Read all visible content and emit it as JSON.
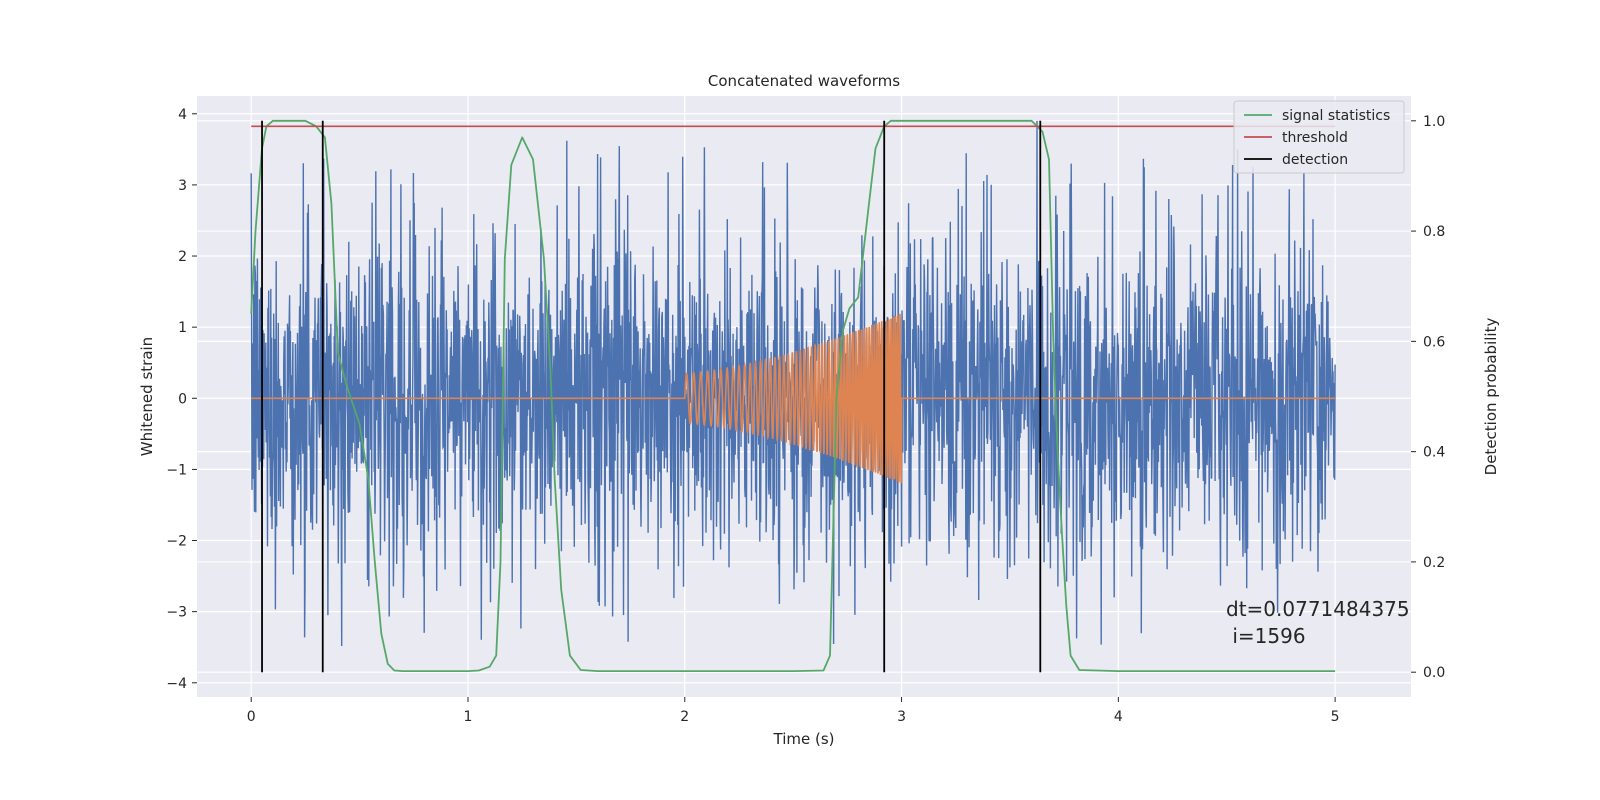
{
  "chart_data": {
    "type": "line",
    "title": "Concatenated waveforms",
    "xlabel": "Time (s)",
    "ylabel_left": "Whitened strain",
    "ylabel_right": "Detection probability",
    "xlim": [
      -0.25,
      5.35
    ],
    "ylim_left": [
      -4.2,
      4.25
    ],
    "ylim_right": [
      -0.045,
      1.045
    ],
    "x_ticks": [
      0,
      1,
      2,
      3,
      4,
      5
    ],
    "x_tick_labels": [
      "0",
      "1",
      "2",
      "3",
      "4",
      "5"
    ],
    "y_left_ticks": [
      4,
      3,
      2,
      1,
      0,
      -1,
      -2,
      -3,
      -4
    ],
    "y_left_tick_labels": [
      "4",
      "3",
      "2",
      "1",
      "0",
      "−1",
      "−2",
      "−3",
      "−4"
    ],
    "y_right_ticks": [
      1.0,
      0.8,
      0.6,
      0.4,
      0.2,
      0.0
    ],
    "y_right_tick_labels": [
      "1.0",
      "0.8",
      "0.6",
      "0.4",
      "0.2",
      "0.0"
    ],
    "grid": true,
    "legend_position": "top-right",
    "series": [
      {
        "name": "whitened strain (noise)",
        "axis": "left",
        "color": "#4c72b0",
        "x_range": [
          0,
          5
        ],
        "typical_amplitude": 1.2,
        "peak_range": [
          -3.8,
          3.9
        ]
      },
      {
        "name": "injected chirp",
        "axis": "left",
        "color": "#dd8452",
        "x_range": [
          0,
          5
        ],
        "chirp_x_range": [
          2.0,
          3.0
        ],
        "amplitude_start": 0.35,
        "amplitude_end": 1.2
      },
      {
        "name": "signal statistics",
        "axis": "right",
        "color": "#55a868",
        "x": [
          0.0,
          0.02,
          0.05,
          0.07,
          0.1,
          0.15,
          0.25,
          0.3,
          0.34,
          0.37,
          0.4,
          0.44,
          0.5,
          0.54,
          0.57,
          0.6,
          0.63,
          0.66,
          0.7,
          0.8,
          0.9,
          1.0,
          1.05,
          1.1,
          1.13,
          1.15,
          1.17,
          1.2,
          1.25,
          1.3,
          1.35,
          1.38,
          1.4,
          1.43,
          1.47,
          1.52,
          1.6,
          2.0,
          2.5,
          2.64,
          2.67,
          2.7,
          2.73,
          2.76,
          2.8,
          2.85,
          2.88,
          2.92,
          2.95,
          3.0,
          3.3,
          3.6,
          3.65,
          3.68,
          3.7,
          3.72,
          3.74,
          3.76,
          3.78,
          3.82,
          4.0,
          4.5,
          5.0
        ],
        "values": [
          0.65,
          0.8,
          0.95,
          0.99,
          1.0,
          1.0,
          1.0,
          0.99,
          0.97,
          0.85,
          0.58,
          0.52,
          0.45,
          0.35,
          0.2,
          0.07,
          0.015,
          0.003,
          0.002,
          0.002,
          0.002,
          0.002,
          0.003,
          0.01,
          0.03,
          0.2,
          0.75,
          0.92,
          0.97,
          0.93,
          0.75,
          0.55,
          0.35,
          0.15,
          0.03,
          0.004,
          0.002,
          0.002,
          0.002,
          0.003,
          0.03,
          0.5,
          0.62,
          0.66,
          0.68,
          0.85,
          0.95,
          0.99,
          1.0,
          1.0,
          1.0,
          1.0,
          0.98,
          0.93,
          0.6,
          0.4,
          0.25,
          0.12,
          0.03,
          0.004,
          0.002,
          0.002,
          0.002
        ]
      },
      {
        "name": "threshold",
        "axis": "right",
        "color": "#c44e52",
        "x": [
          0,
          5
        ],
        "values": [
          0.99,
          0.99
        ]
      },
      {
        "name": "detection",
        "axis": "right",
        "color": "#000000",
        "x_positions": [
          0.05,
          0.33,
          2.92,
          3.64
        ],
        "y_range": [
          0.0,
          1.0
        ]
      }
    ],
    "legend": [
      "signal statistics",
      "threshold",
      "detection"
    ],
    "annotations": [
      "dt=0.0771484375",
      " i=1596"
    ]
  }
}
